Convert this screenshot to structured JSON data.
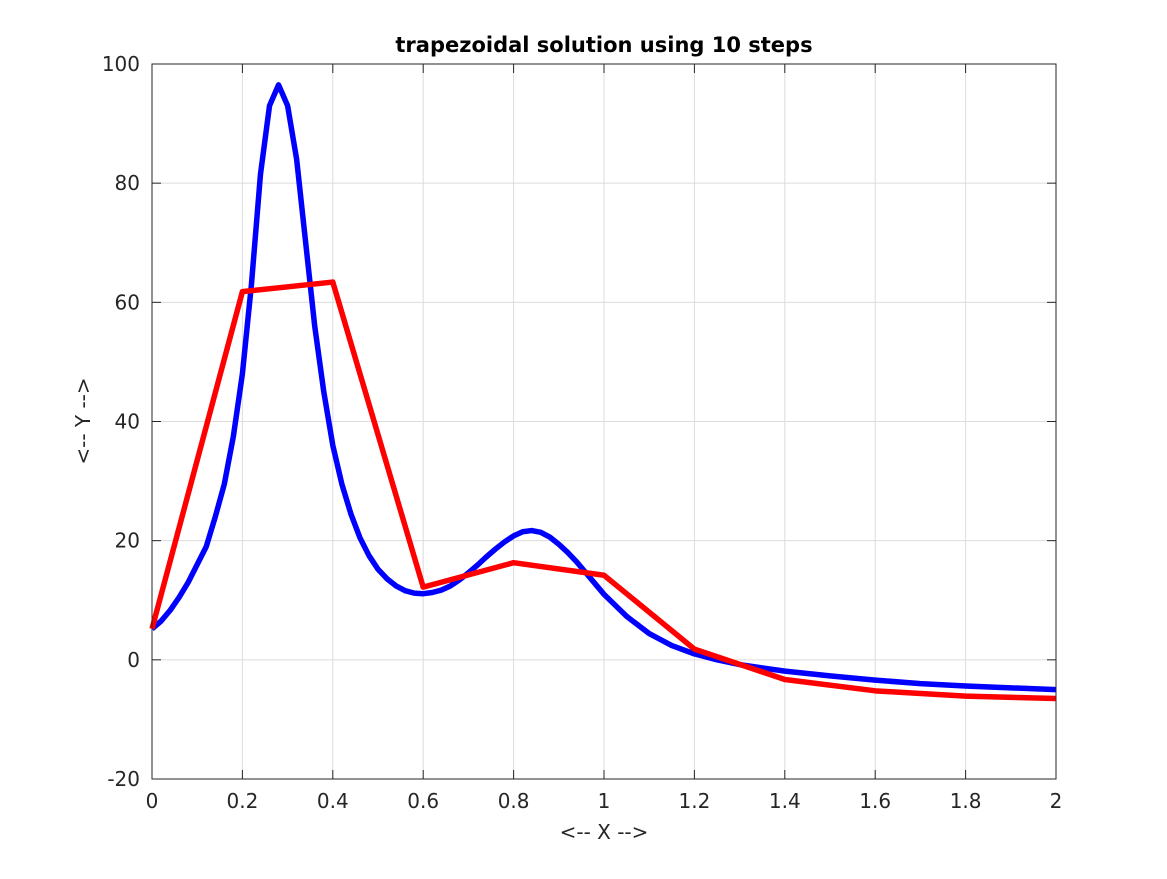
{
  "chart_data": {
    "type": "line",
    "title": "trapezoidal solution using 10 steps",
    "xlabel": "<-- X -->",
    "ylabel": "<-- Y -->",
    "xlim": [
      0,
      2
    ],
    "ylim": [
      -20,
      100
    ],
    "xticks": [
      0,
      0.2,
      0.4,
      0.6,
      0.8,
      1,
      1.2,
      1.4,
      1.6,
      1.8,
      2
    ],
    "xtick_labels": [
      "0",
      "0.2",
      "0.4",
      "0.6",
      "0.8",
      "1",
      "1.2",
      "1.4",
      "1.6",
      "1.8",
      "2"
    ],
    "yticks": [
      -20,
      0,
      20,
      40,
      60,
      80,
      100
    ],
    "ytick_labels": [
      "-20",
      "0",
      "20",
      "40",
      "60",
      "80",
      "100"
    ],
    "grid": true,
    "legend": "none",
    "series": [
      {
        "color": "#0000ff",
        "x": [
          0,
          0.02,
          0.04,
          0.06,
          0.08,
          0.1,
          0.12,
          0.14,
          0.16,
          0.18,
          0.2,
          0.22,
          0.24,
          0.26,
          0.28,
          0.3,
          0.32,
          0.34,
          0.36,
          0.38,
          0.4,
          0.42,
          0.44,
          0.46,
          0.48,
          0.5,
          0.52,
          0.54,
          0.56,
          0.58,
          0.6,
          0.62,
          0.64,
          0.66,
          0.68,
          0.7,
          0.72,
          0.74,
          0.76,
          0.78,
          0.8,
          0.82,
          0.84,
          0.86,
          0.88,
          0.9,
          0.92,
          0.94,
          0.96,
          0.98,
          1,
          1.05,
          1.1,
          1.15,
          1.2,
          1.25,
          1.3,
          1.4,
          1.5,
          1.6,
          1.7,
          1.8,
          1.9,
          2
        ],
        "y": [
          5.2,
          6.5,
          8.3,
          10.5,
          13.0,
          16.0,
          19.0,
          24.0,
          29.5,
          37.5,
          48.0,
          63.0,
          81.5,
          93.0,
          96.5,
          93.0,
          84.0,
          70.0,
          56.0,
          45.0,
          36.0,
          29.5,
          24.5,
          20.5,
          17.5,
          15.2,
          13.6,
          12.4,
          11.6,
          11.2,
          11.1,
          11.3,
          11.7,
          12.4,
          13.4,
          14.6,
          15.9,
          17.3,
          18.6,
          19.8,
          20.8,
          21.5,
          21.7,
          21.4,
          20.6,
          19.4,
          18.0,
          16.4,
          14.6,
          12.8,
          11.0,
          7.3,
          4.4,
          2.4,
          1.0,
          0.0,
          -0.8,
          -1.9,
          -2.7,
          -3.4,
          -4.0,
          -4.4,
          -4.7,
          -5.0
        ]
      },
      {
        "color": "#ff0000",
        "x": [
          0,
          0.2,
          0.4,
          0.6,
          0.8,
          1,
          1.2,
          1.4,
          1.6,
          1.8,
          2
        ],
        "y": [
          5.2,
          61.8,
          63.4,
          12.2,
          16.3,
          14.2,
          1.8,
          -3.3,
          -5.2,
          -6.1,
          -6.5
        ]
      }
    ]
  }
}
